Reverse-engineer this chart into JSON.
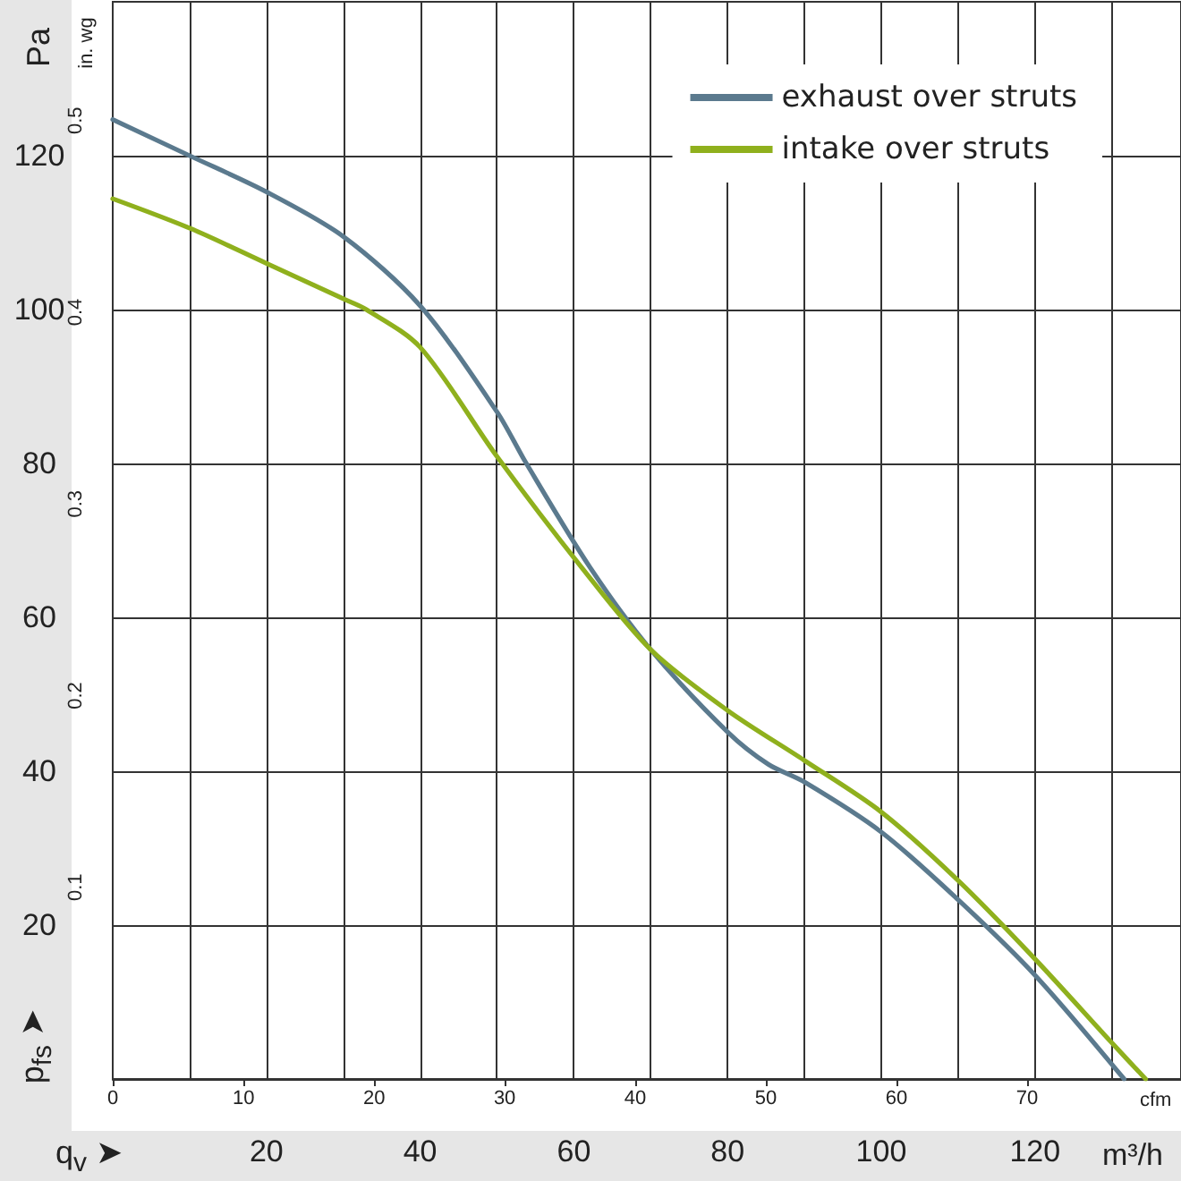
{
  "chart_data": {
    "type": "line",
    "xlabel": "m³/h",
    "x2label": "cfm",
    "ylabel": "Pa",
    "y2label": "in. wg",
    "annotations": [
      "p$_{fs}$ ➤",
      "q$_{v}$ ➤"
    ],
    "series": [
      {
        "name": "exhaust over struts",
        "color": "#5b7a8e",
        "x": [
          0,
          10,
          20,
          30,
          40,
          50,
          53.7,
          62.1,
          70,
          80,
          85.3,
          90,
          100,
          110,
          120,
          131.6
        ],
        "values": [
          124.7,
          120,
          115.3,
          109.5,
          100.5,
          86.7,
          80.2,
          66.5,
          55.8,
          45.1,
          40.9,
          38.6,
          32.1,
          23.3,
          13.5,
          0
        ]
      },
      {
        "name": "intake over struts",
        "color": "#8fb01d",
        "x": [
          0,
          10.2,
          20,
          30,
          33,
          40,
          50,
          61,
          70,
          80,
          90,
          100,
          110,
          120,
          130,
          134.4
        ],
        "values": [
          114.4,
          110.5,
          106,
          101.4,
          100,
          95.1,
          80.9,
          66.5,
          55.8,
          47.9,
          41.4,
          34.7,
          25.8,
          15.6,
          4.7,
          0
        ]
      }
    ],
    "xlim": [
      0,
      139
    ],
    "xticks": [
      {
        "value": 10,
        "label": null
      },
      20,
      {
        "value": 30,
        "label": null
      },
      40,
      {
        "value": 50,
        "label": null
      },
      60,
      {
        "value": 70,
        "label": null
      },
      80,
      {
        "value": 90,
        "label": null
      },
      100,
      {
        "value": 110,
        "label": null
      },
      120,
      {
        "value": 130,
        "label": null
      }
    ],
    "x2lim": [
      0,
      81.8
    ],
    "x2ticks": [
      0,
      10,
      20,
      30,
      40,
      50,
      60,
      70
    ],
    "ylim": [
      0,
      140
    ],
    "yticks": [
      20,
      40,
      60,
      80,
      100,
      120
    ],
    "y2lim": [
      0,
      0.562
    ],
    "y2ticks": [
      0.1,
      0.2,
      0.3,
      0.4,
      0.5
    ],
    "grid": true,
    "legend": "top right",
    "marker": "none",
    "line_style": "solid"
  }
}
